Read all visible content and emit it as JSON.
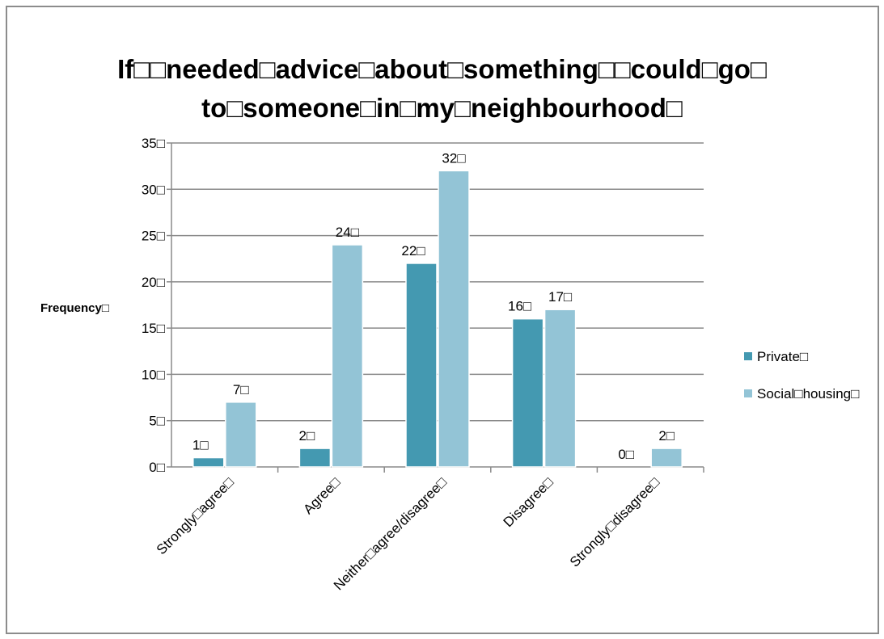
{
  "chart_data": {
    "type": "bar",
    "title_lines": [
      "If□□needed□advice□about□something□□could□go□",
      "to□someone□in□my□neighbourhood□"
    ],
    "ylabel": "Frequency□",
    "xlabel": "",
    "categories": [
      "Strongly□agree□",
      "Agree□",
      "Neither□agree/disagree□",
      "Disagree□",
      "Strongly□disagree□"
    ],
    "series": [
      {
        "name": "Private□",
        "color": "#4499b1",
        "values": [
          1,
          2,
          22,
          16,
          0
        ]
      },
      {
        "name": "Social□housing□",
        "color": "#93c4d6",
        "values": [
          7,
          24,
          32,
          17,
          2
        ]
      }
    ],
    "value_suffix": "□",
    "ylim": [
      0,
      35
    ],
    "yticks": [
      "0□",
      "5□",
      "10□",
      "15□",
      "20□",
      "25□",
      "30□",
      "35□"
    ],
    "grid": true,
    "legend": "right"
  }
}
